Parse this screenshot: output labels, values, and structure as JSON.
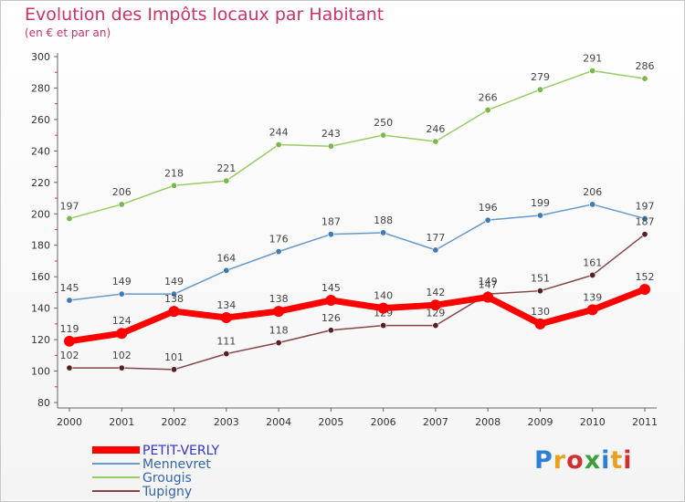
{
  "header": {
    "title": "Evolution des Impôts locaux par Habitant",
    "subtitle": "(en € et par an)"
  },
  "logo": {
    "text": "Proxiti",
    "letter_colors": [
      "#2e7fd6",
      "#e8a020",
      "#d03030",
      "#3aa03a",
      "#2e7fd6",
      "#e8a020",
      "#d03030"
    ]
  },
  "chart_data": {
    "type": "line",
    "x": [
      "2000",
      "2001",
      "2002",
      "2003",
      "2004",
      "2005",
      "2006",
      "2007",
      "2008",
      "2009",
      "2010",
      "2011"
    ],
    "ylim": [
      80,
      300
    ],
    "yticks": [
      80,
      100,
      120,
      140,
      160,
      180,
      200,
      220,
      240,
      260,
      280,
      300
    ],
    "grid": false,
    "legend_position": "bottom-left",
    "series": [
      {
        "name": "Grougis",
        "color": "#99cc66",
        "point_color": "#7ab84a",
        "width": 1.5,
        "values": [
          197,
          206,
          218,
          221,
          244,
          243,
          250,
          246,
          266,
          279,
          291,
          286
        ]
      },
      {
        "name": "Mennevret",
        "color": "#6699cc",
        "point_color": "#3d7ab8",
        "width": 1.5,
        "values": [
          145,
          149,
          149,
          164,
          176,
          187,
          188,
          177,
          196,
          199,
          206,
          197
        ]
      },
      {
        "name": "Tupigny",
        "color": "#884444",
        "point_color": "#5a2020",
        "width": 1.5,
        "values": [
          102,
          102,
          101,
          111,
          118,
          126,
          129,
          129,
          149,
          151,
          161,
          187
        ]
      },
      {
        "name": "PETIT-VERLY",
        "color": "#ff0000",
        "point_color": "#ff0000",
        "width": 7,
        "values": [
          119,
          124,
          138,
          134,
          138,
          145,
          140,
          142,
          147,
          130,
          139,
          152
        ]
      }
    ],
    "legend_order": [
      "PETIT-VERLY",
      "Mennevret",
      "Grougis",
      "Tupigny"
    ]
  }
}
